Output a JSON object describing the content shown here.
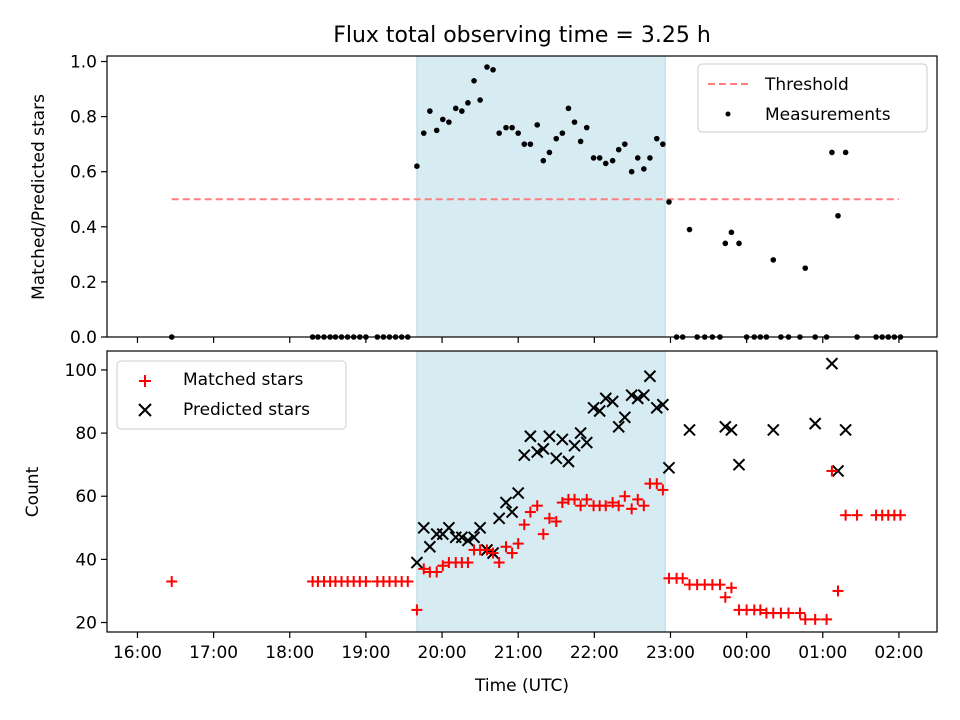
{
  "chart_data": [
    {
      "type": "scatter",
      "title": "Flux total observing time = 3.25 h",
      "ylabel": "Matched/Predicted stars",
      "xlabel": "",
      "x_unit": "hours since 16:00 UTC",
      "xlim": [
        -0.4,
        10.5
      ],
      "ylim": [
        0,
        1.02
      ],
      "yticks": [
        0.0,
        0.2,
        0.4,
        0.6,
        0.8,
        1.0
      ],
      "ytick_labels": [
        "0.0",
        "0.2",
        "0.4",
        "0.6",
        "0.8",
        "1.0"
      ],
      "xticks": [
        0,
        1,
        2,
        3,
        4,
        5,
        6,
        7,
        8,
        9,
        10
      ],
      "shaded_span": [
        3.67,
        6.93
      ],
      "shade_color": "#add8e6",
      "legend_position": "upper right",
      "threshold": {
        "name": "Threshold",
        "y": 0.5,
        "x_range": [
          0.45,
          10.0
        ],
        "color": "#ff7f7f",
        "style": "dashed"
      },
      "series": [
        {
          "name": "Measurements",
          "color": "#000000",
          "marker": "dot",
          "points": [
            [
              0.45,
              0.0
            ],
            [
              2.3,
              0.0
            ],
            [
              2.37,
              0.0
            ],
            [
              2.45,
              0.0
            ],
            [
              2.53,
              0.0
            ],
            [
              2.6,
              0.0
            ],
            [
              2.68,
              0.0
            ],
            [
              2.76,
              0.0
            ],
            [
              2.84,
              0.0
            ],
            [
              2.92,
              0.0
            ],
            [
              3.0,
              0.0
            ],
            [
              3.15,
              0.0
            ],
            [
              3.23,
              0.0
            ],
            [
              3.31,
              0.0
            ],
            [
              3.39,
              0.0
            ],
            [
              3.47,
              0.0
            ],
            [
              3.55,
              0.0
            ],
            [
              3.67,
              0.62
            ],
            [
              3.76,
              0.74
            ],
            [
              3.84,
              0.82
            ],
            [
              3.93,
              0.75
            ],
            [
              4.01,
              0.79
            ],
            [
              4.09,
              0.78
            ],
            [
              4.18,
              0.83
            ],
            [
              4.26,
              0.82
            ],
            [
              4.34,
              0.85
            ],
            [
              4.42,
              0.93
            ],
            [
              4.5,
              0.86
            ],
            [
              4.59,
              0.98
            ],
            [
              4.67,
              0.97
            ],
            [
              4.75,
              0.74
            ],
            [
              4.84,
              0.76
            ],
            [
              4.92,
              0.76
            ],
            [
              5.0,
              0.74
            ],
            [
              5.08,
              0.7
            ],
            [
              5.16,
              0.7
            ],
            [
              5.25,
              0.77
            ],
            [
              5.33,
              0.64
            ],
            [
              5.41,
              0.67
            ],
            [
              5.5,
              0.72
            ],
            [
              5.58,
              0.74
            ],
            [
              5.66,
              0.83
            ],
            [
              5.74,
              0.78
            ],
            [
              5.82,
              0.71
            ],
            [
              5.9,
              0.76
            ],
            [
              5.99,
              0.65
            ],
            [
              6.07,
              0.65
            ],
            [
              6.15,
              0.63
            ],
            [
              6.24,
              0.64
            ],
            [
              6.32,
              0.68
            ],
            [
              6.4,
              0.7
            ],
            [
              6.49,
              0.6
            ],
            [
              6.57,
              0.65
            ],
            [
              6.65,
              0.61
            ],
            [
              6.73,
              0.65
            ],
            [
              6.82,
              0.72
            ],
            [
              6.9,
              0.7
            ],
            [
              6.98,
              0.49
            ],
            [
              7.08,
              0.0
            ],
            [
              7.16,
              0.0
            ],
            [
              7.25,
              0.39
            ],
            [
              7.35,
              0.0
            ],
            [
              7.45,
              0.0
            ],
            [
              7.55,
              0.0
            ],
            [
              7.65,
              0.0
            ],
            [
              7.72,
              0.34
            ],
            [
              7.8,
              0.38
            ],
            [
              7.9,
              0.34
            ],
            [
              8.0,
              0.0
            ],
            [
              8.1,
              0.0
            ],
            [
              8.18,
              0.0
            ],
            [
              8.26,
              0.0
            ],
            [
              8.35,
              0.28
            ],
            [
              8.45,
              0.0
            ],
            [
              8.55,
              0.0
            ],
            [
              8.7,
              0.0
            ],
            [
              8.77,
              0.25
            ],
            [
              8.9,
              0.0
            ],
            [
              9.05,
              0.0
            ],
            [
              9.12,
              0.67
            ],
            [
              9.2,
              0.44
            ],
            [
              9.3,
              0.67
            ],
            [
              9.45,
              0.0
            ],
            [
              9.7,
              0.0
            ],
            [
              9.78,
              0.0
            ],
            [
              9.86,
              0.0
            ],
            [
              9.94,
              0.0
            ],
            [
              10.02,
              0.0
            ]
          ]
        }
      ]
    },
    {
      "type": "scatter",
      "title": "",
      "xlabel": "Time (UTC)",
      "ylabel": "Count",
      "x_unit": "hours since 16:00 UTC",
      "xlim": [
        -0.4,
        10.5
      ],
      "ylim": [
        17,
        106
      ],
      "yticks": [
        20,
        40,
        60,
        80,
        100
      ],
      "ytick_labels": [
        "20",
        "40",
        "60",
        "80",
        "100"
      ],
      "xticks": [
        0,
        1,
        2,
        3,
        4,
        5,
        6,
        7,
        8,
        9,
        10
      ],
      "xtick_labels": [
        "16:00",
        "17:00",
        "18:00",
        "19:00",
        "20:00",
        "21:00",
        "22:00",
        "23:00",
        "00:00",
        "01:00",
        "02:00"
      ],
      "shaded_span": [
        3.67,
        6.93
      ],
      "shade_color": "#add8e6",
      "legend_position": "upper left",
      "series": [
        {
          "name": "Matched stars",
          "color": "#ff0000",
          "marker": "plus",
          "points": [
            [
              0.45,
              33
            ],
            [
              2.3,
              33
            ],
            [
              2.37,
              33
            ],
            [
              2.45,
              33
            ],
            [
              2.53,
              33
            ],
            [
              2.6,
              33
            ],
            [
              2.68,
              33
            ],
            [
              2.76,
              33
            ],
            [
              2.84,
              33
            ],
            [
              2.92,
              33
            ],
            [
              3.0,
              33
            ],
            [
              3.15,
              33
            ],
            [
              3.23,
              33
            ],
            [
              3.31,
              33
            ],
            [
              3.39,
              33
            ],
            [
              3.47,
              33
            ],
            [
              3.55,
              33
            ],
            [
              3.67,
              24
            ],
            [
              3.76,
              37
            ],
            [
              3.84,
              36
            ],
            [
              3.93,
              36
            ],
            [
              4.01,
              38
            ],
            [
              4.09,
              39
            ],
            [
              4.18,
              39
            ],
            [
              4.26,
              39
            ],
            [
              4.34,
              39
            ],
            [
              4.42,
              43
            ],
            [
              4.5,
              43
            ],
            [
              4.59,
              43
            ],
            [
              4.67,
              42
            ],
            [
              4.75,
              39
            ],
            [
              4.84,
              44
            ],
            [
              4.92,
              42
            ],
            [
              5.0,
              45
            ],
            [
              5.08,
              51
            ],
            [
              5.16,
              55
            ],
            [
              5.25,
              57
            ],
            [
              5.33,
              48
            ],
            [
              5.41,
              53
            ],
            [
              5.5,
              52
            ],
            [
              5.58,
              58
            ],
            [
              5.66,
              59
            ],
            [
              5.74,
              59
            ],
            [
              5.82,
              57
            ],
            [
              5.9,
              59
            ],
            [
              5.99,
              57
            ],
            [
              6.07,
              57
            ],
            [
              6.15,
              57
            ],
            [
              6.24,
              58
            ],
            [
              6.32,
              57
            ],
            [
              6.4,
              60
            ],
            [
              6.49,
              56
            ],
            [
              6.57,
              59
            ],
            [
              6.65,
              57
            ],
            [
              6.73,
              64
            ],
            [
              6.82,
              64
            ],
            [
              6.9,
              62
            ],
            [
              6.98,
              34
            ],
            [
              7.08,
              34
            ],
            [
              7.16,
              34
            ],
            [
              7.25,
              32
            ],
            [
              7.35,
              32
            ],
            [
              7.45,
              32
            ],
            [
              7.55,
              32
            ],
            [
              7.65,
              32
            ],
            [
              7.72,
              28
            ],
            [
              7.8,
              31
            ],
            [
              7.9,
              24
            ],
            [
              8.0,
              24
            ],
            [
              8.1,
              24
            ],
            [
              8.18,
              24
            ],
            [
              8.26,
              23
            ],
            [
              8.35,
              23
            ],
            [
              8.45,
              23
            ],
            [
              8.55,
              23
            ],
            [
              8.7,
              23
            ],
            [
              8.77,
              21
            ],
            [
              8.9,
              21
            ],
            [
              9.05,
              21
            ],
            [
              9.12,
              68
            ],
            [
              9.2,
              30
            ],
            [
              9.3,
              54
            ],
            [
              9.45,
              54
            ],
            [
              9.7,
              54
            ],
            [
              9.78,
              54
            ],
            [
              9.86,
              54
            ],
            [
              9.94,
              54
            ],
            [
              10.02,
              54
            ]
          ]
        },
        {
          "name": "Predicted stars",
          "color": "#000000",
          "marker": "x",
          "points": [
            [
              3.67,
              39
            ],
            [
              3.76,
              50
            ],
            [
              3.84,
              44
            ],
            [
              3.93,
              48
            ],
            [
              4.01,
              48
            ],
            [
              4.09,
              50
            ],
            [
              4.18,
              47
            ],
            [
              4.26,
              47
            ],
            [
              4.34,
              46
            ],
            [
              4.42,
              47
            ],
            [
              4.5,
              50
            ],
            [
              4.59,
              43
            ],
            [
              4.67,
              42
            ],
            [
              4.75,
              53
            ],
            [
              4.84,
              58
            ],
            [
              4.92,
              55
            ],
            [
              5.0,
              61
            ],
            [
              5.08,
              73
            ],
            [
              5.16,
              79
            ],
            [
              5.25,
              74
            ],
            [
              5.33,
              75
            ],
            [
              5.41,
              79
            ],
            [
              5.5,
              72
            ],
            [
              5.58,
              78
            ],
            [
              5.66,
              71
            ],
            [
              5.74,
              76
            ],
            [
              5.82,
              80
            ],
            [
              5.9,
              77
            ],
            [
              5.99,
              88
            ],
            [
              6.07,
              87
            ],
            [
              6.15,
              91
            ],
            [
              6.24,
              90
            ],
            [
              6.32,
              82
            ],
            [
              6.4,
              85
            ],
            [
              6.49,
              92
            ],
            [
              6.57,
              91
            ],
            [
              6.65,
              92
            ],
            [
              6.73,
              98
            ],
            [
              6.82,
              88
            ],
            [
              6.9,
              89
            ],
            [
              6.98,
              69
            ],
            [
              7.25,
              81
            ],
            [
              7.72,
              82
            ],
            [
              7.8,
              81
            ],
            [
              7.9,
              70
            ],
            [
              8.35,
              81
            ],
            [
              8.9,
              83
            ],
            [
              9.12,
              102
            ],
            [
              9.2,
              68
            ],
            [
              9.3,
              81
            ]
          ]
        }
      ]
    }
  ]
}
